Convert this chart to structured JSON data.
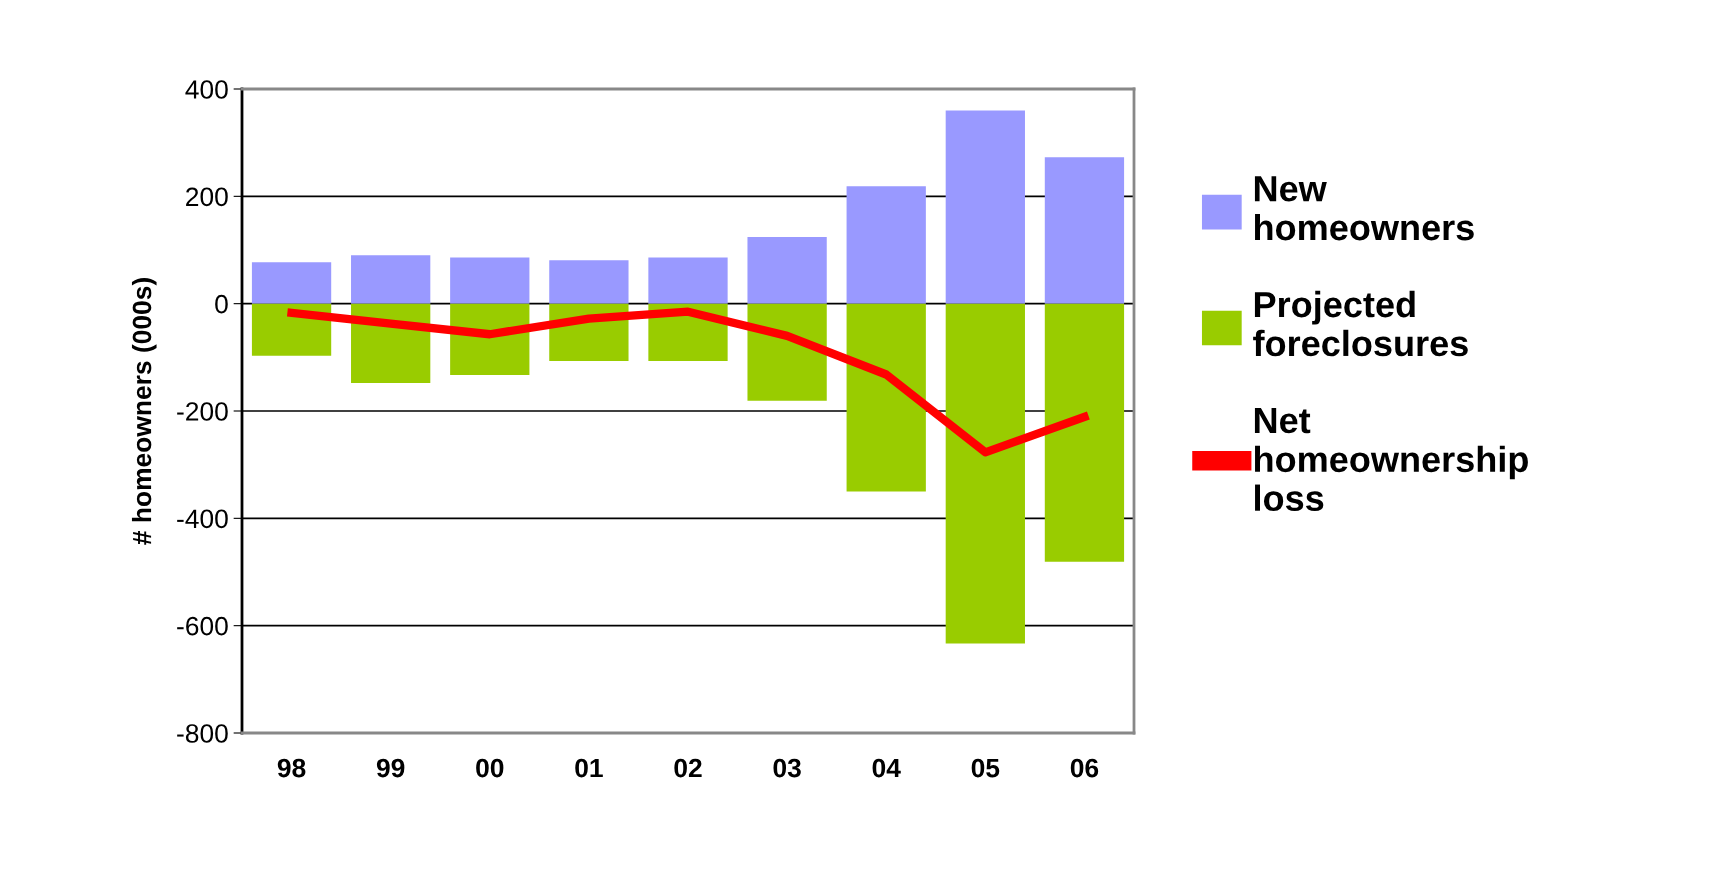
{
  "chart_data": {
    "type": "bar",
    "ylabel": "# homeowners (000s)",
    "categories": [
      "98",
      "99",
      "00",
      "01",
      "02",
      "03",
      "04",
      "05",
      "06"
    ],
    "series": [
      {
        "name": "New homeowners",
        "color": "#9999ff",
        "values": [
          77,
          90,
          86,
          81,
          86,
          124,
          219,
          360,
          273
        ]
      },
      {
        "name": "Projected foreclosures",
        "color": "#99cc00",
        "values": [
          -97,
          -148,
          -133,
          -107,
          -107,
          -181,
          -350,
          -633,
          -481
        ]
      },
      {
        "name": "Net homeownership loss",
        "color": "#ff0000",
        "type": "line",
        "values": [
          -17,
          -37,
          -57,
          -28,
          -15,
          -60,
          -132,
          -277,
          -211
        ]
      }
    ],
    "ylim": [
      -800,
      400
    ],
    "yticks": [
      -800,
      -600,
      -400,
      -200,
      0,
      200,
      400
    ],
    "stacked": true,
    "grid": "y",
    "legend": "right",
    "marker": "none",
    "line_style": "solid"
  }
}
